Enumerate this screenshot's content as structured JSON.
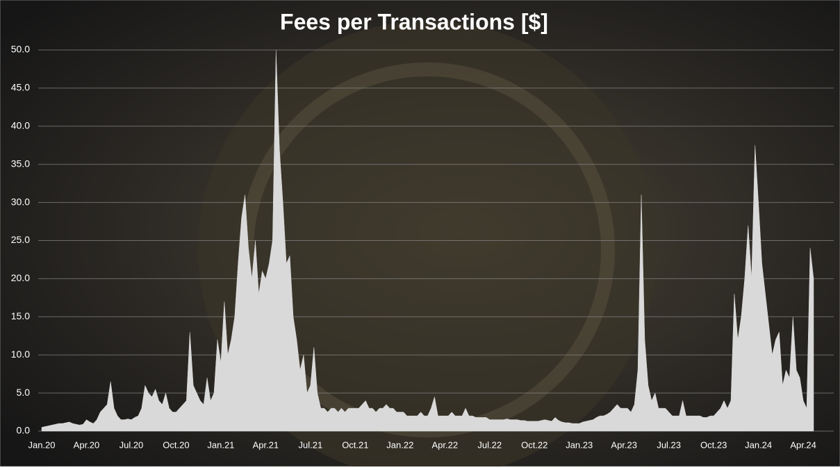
{
  "chart_data": {
    "type": "area",
    "title": "Fees per Transactions [$]",
    "categories": [
      "Jan.20",
      null,
      null,
      null,
      null,
      null,
      null,
      null,
      null,
      null,
      null,
      null,
      null,
      "Apr.20",
      null,
      null,
      null,
      null,
      null,
      null,
      null,
      null,
      null,
      null,
      null,
      null,
      "Jul.20",
      null,
      null,
      null,
      null,
      null,
      null,
      null,
      null,
      null,
      null,
      null,
      null,
      "Oct.20",
      null,
      null,
      null,
      null,
      null,
      null,
      null,
      null,
      null,
      null,
      null,
      null,
      "Jan.21",
      null,
      null,
      null,
      null,
      null,
      null,
      null,
      null,
      null,
      null,
      null,
      null,
      "Apr.21",
      null,
      null,
      null,
      null,
      null,
      null,
      null,
      null,
      null,
      null,
      null,
      null,
      "Jul.21",
      null,
      null,
      null,
      null,
      null,
      null,
      null,
      null,
      null,
      null,
      null,
      null,
      "Oct.21",
      null,
      null,
      null,
      null,
      null,
      null,
      null,
      null,
      null,
      null,
      null,
      null,
      "Jan.22",
      null,
      null,
      null,
      null,
      null,
      null,
      null,
      null,
      null,
      null,
      null,
      null,
      "Apr.22",
      null,
      null,
      null,
      null,
      null,
      null,
      null,
      null,
      null,
      null,
      null,
      null,
      "Jul.22",
      null,
      null,
      null,
      null,
      null,
      null,
      null,
      null,
      null,
      null,
      null,
      null,
      "Oct.22",
      null,
      null,
      null,
      null,
      null,
      null,
      null,
      null,
      null,
      null,
      null,
      null,
      "Jan.23",
      null,
      null,
      null,
      null,
      null,
      null,
      null,
      null,
      null,
      null,
      null,
      null,
      "Apr.23",
      null,
      null,
      null,
      null,
      null,
      null,
      null,
      null,
      null,
      null,
      null,
      null,
      "Jul.23",
      null,
      null,
      null,
      null,
      null,
      null,
      null,
      null,
      null,
      null,
      null,
      null,
      "Oct.23",
      null,
      null,
      null,
      null,
      null,
      null,
      null,
      null,
      null,
      null,
      null,
      null,
      "Jan.24",
      null,
      null,
      null,
      null,
      null,
      null,
      null,
      null,
      null,
      null,
      null,
      null,
      "Apr.24",
      null,
      null,
      null
    ],
    "series": [
      {
        "color": "#d9d9d9",
        "values": [
          0.5,
          0.6,
          0.7,
          0.8,
          0.9,
          1.0,
          1.0,
          1.1,
          1.2,
          1.0,
          0.9,
          0.8,
          0.9,
          1.5,
          1.2,
          1.0,
          1.5,
          2.5,
          3.0,
          3.5,
          6.5,
          3.0,
          2.0,
          1.5,
          1.5,
          1.6,
          1.5,
          1.8,
          2.0,
          3.0,
          6.0,
          5.0,
          4.5,
          5.5,
          4.0,
          3.5,
          5.0,
          3.0,
          2.5,
          2.5,
          3.0,
          3.5,
          4.0,
          13.0,
          6.0,
          5.0,
          4.0,
          3.5,
          7.0,
          4.0,
          5.0,
          12.0,
          9,
          17,
          10,
          12,
          15,
          22,
          28,
          31,
          24,
          20,
          25,
          18,
          21,
          20,
          22,
          25,
          50,
          37,
          30,
          22,
          23,
          15,
          12,
          8,
          10,
          5,
          6,
          11,
          5,
          3,
          3,
          2.5,
          3,
          3,
          2.5,
          3,
          2.5,
          3,
          3,
          3,
          3,
          3.5,
          4,
          3,
          3,
          2.5,
          3,
          3,
          3.5,
          3,
          3,
          2.5,
          2.5,
          2.5,
          2,
          2,
          2,
          2,
          2.5,
          2,
          2,
          3,
          4.5,
          2,
          2,
          2,
          2,
          2.5,
          2,
          2,
          2,
          3,
          2,
          2,
          1.8,
          1.8,
          1.8,
          1.8,
          1.5,
          1.5,
          1.5,
          1.5,
          1.5,
          1.6,
          1.5,
          1.5,
          1.5,
          1.4,
          1.4,
          1.3,
          1.3,
          1.3,
          1.3,
          1.4,
          1.5,
          1.4,
          1.3,
          1.8,
          1.4,
          1.2,
          1.1,
          1.1,
          1.0,
          1.0,
          1.0,
          1.2,
          1.3,
          1.4,
          1.5,
          1.8,
          2.0,
          2.0,
          2.2,
          2.5,
          3.0,
          3.5,
          3.0,
          3,
          3,
          2.5,
          3.5,
          8,
          31,
          12,
          6,
          4,
          5,
          3,
          3,
          3,
          2.5,
          2,
          2,
          2,
          4,
          2,
          2,
          2,
          2,
          2,
          1.8,
          1.8,
          2,
          2,
          2.5,
          3,
          4,
          3,
          4,
          18,
          12,
          15,
          20,
          27,
          20,
          37.5,
          30,
          22,
          18,
          14,
          10,
          12,
          13,
          6,
          8,
          7,
          15,
          8,
          7,
          4,
          3,
          24,
          20
        ]
      }
    ],
    "ylim": [
      0,
      50
    ],
    "yticks": [
      {
        "value": 0,
        "label": "0.0"
      },
      {
        "value": 5,
        "label": "5.0"
      },
      {
        "value": 10,
        "label": "10.0"
      },
      {
        "value": 15,
        "label": "15.0"
      },
      {
        "value": 20,
        "label": "20.0"
      },
      {
        "value": 25,
        "label": "25.0"
      },
      {
        "value": 30,
        "label": "30.0"
      },
      {
        "value": 35,
        "label": "35.0"
      },
      {
        "value": 40,
        "label": "40.0"
      },
      {
        "value": 45,
        "label": "45.0"
      },
      {
        "value": 50,
        "label": "50.0"
      }
    ],
    "grid": true
  }
}
